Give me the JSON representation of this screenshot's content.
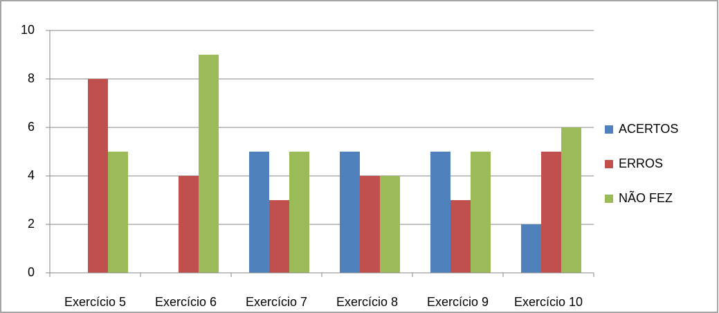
{
  "chart_data": {
    "type": "bar",
    "categories": [
      "Exercício 5",
      "Exercício 6",
      "Exercício 7",
      "Exercício 8",
      "Exercício 9",
      "Exercício 10"
    ],
    "series": [
      {
        "name": "ACERTOS",
        "color": "#4f81bd",
        "values": [
          0,
          0,
          5,
          5,
          5,
          2
        ]
      },
      {
        "name": "ERROS",
        "color": "#c0504d",
        "values": [
          8,
          4,
          3,
          4,
          3,
          5
        ]
      },
      {
        "name": "NÃO FEZ",
        "color": "#9bbb59",
        "values": [
          5,
          9,
          5,
          4,
          5,
          6
        ]
      }
    ],
    "ylim": [
      0,
      10
    ],
    "yticks": [
      0,
      2,
      4,
      6,
      8,
      10
    ],
    "grid": true,
    "legend": "right"
  }
}
